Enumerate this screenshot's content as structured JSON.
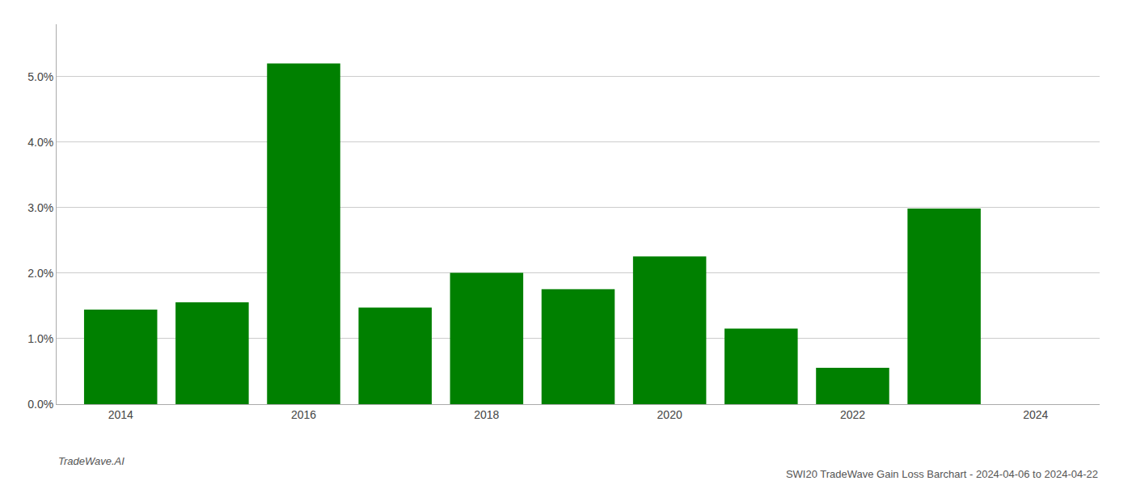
{
  "chart_data": {
    "type": "bar",
    "title": "SWI20 TradeWave Gain Loss Barchart - 2024-04-06 to 2024-04-22",
    "annotations": [
      "TradeWave.AI"
    ],
    "x": [
      2014,
      2015,
      2016,
      2017,
      2018,
      2019,
      2020,
      2021,
      2022,
      2023
    ],
    "values": [
      0.01445,
      0.01555,
      0.052,
      0.01475,
      0.02005,
      0.01755,
      0.02255,
      0.01155,
      0.00555,
      0.02985
    ],
    "color": "#008000",
    "xlim": [
      2013.3,
      2024.7
    ],
    "xticks": [
      2014,
      2016,
      2018,
      2020,
      2022,
      2024
    ],
    "ylim": [
      0,
      0.058
    ],
    "yticks": [
      {
        "value": 0.0,
        "label": "0.0%"
      },
      {
        "value": 0.01,
        "label": "1.0%"
      },
      {
        "value": 0.02,
        "label": "2.0%"
      },
      {
        "value": 0.03,
        "label": "3.0%"
      },
      {
        "value": 0.04,
        "label": "4.0%"
      },
      {
        "value": 0.05,
        "label": "5.0%"
      }
    ],
    "grid": true
  }
}
